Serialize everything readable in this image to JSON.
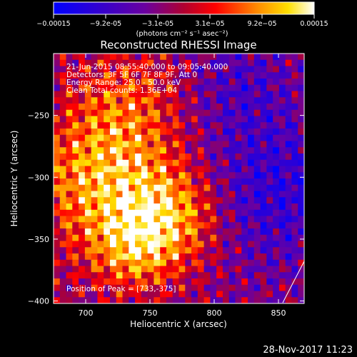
{
  "chart_data": {
    "type": "heatmap",
    "title": "Reconstructed RHESSI Image",
    "xlabel": "Heliocentric X (arcsec)",
    "ylabel": "Heliocentric Y (arcsec)",
    "xlim": [
      675,
      870
    ],
    "ylim": [
      -402,
      -200
    ],
    "x_ticks": [
      700,
      750,
      800,
      850
    ],
    "x_tick_labels": [
      "700",
      "750",
      "800",
      "850"
    ],
    "y_ticks": [
      -250,
      -300,
      -350,
      -400
    ],
    "y_tick_labels": [
      "-250",
      "-300",
      "-350",
      "-400"
    ],
    "colorbar": {
      "min": -0.00015,
      "max": 0.00015,
      "units": "(photons cm⁻² s⁻¹ asec⁻²)",
      "tick_labels": [
        "-0.00015",
        "-9.2e-05",
        "-3.1e-05",
        "3.1e-05",
        "9.2e-05",
        "0.00015"
      ],
      "colormap": "blue-purple-red-orange-yellow-white"
    },
    "annotations": [
      "21-Jun-2015 08:55:40.000 to 09:05:40.000",
      "Detectors: 3F 5F 6F 7F 8F 9F, Att 0",
      "Energy Range: 25.0 - 50.0 keV",
      "Clean    Total counts: 1.36E+04"
    ],
    "peak_label": "Position of Peak = [733,-375]",
    "peak_position": [
      733,
      -375
    ],
    "grid": false
  },
  "footer": {
    "timestamp": "28-Nov-2017 11:23"
  }
}
